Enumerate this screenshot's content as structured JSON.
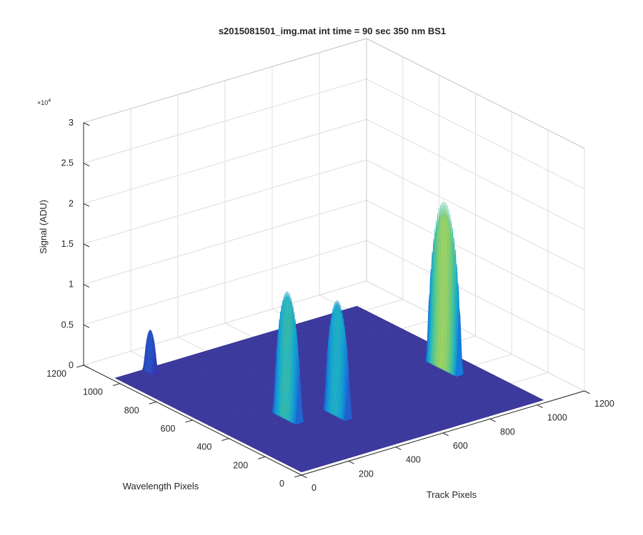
{
  "chart_data": {
    "type": "surface",
    "title": "s2015081501_img.mat int time = 90 sec  350 nm BS1",
    "xlabel": "Track Pixels",
    "ylabel": "Wavelength Pixels",
    "zlabel": "Signal (ADU)",
    "z_exponent": "×10",
    "z_exponent_power": "4",
    "xlim": [
      0,
      1200
    ],
    "ylim": [
      0,
      1200
    ],
    "zlim": [
      0,
      30000
    ],
    "x_ticks": [
      "0",
      "200",
      "400",
      "600",
      "800",
      "1000",
      "1200"
    ],
    "y_ticks": [
      "0",
      "200",
      "400",
      "600",
      "800",
      "1000",
      "1200"
    ],
    "z_ticks": [
      "0",
      "0.5",
      "1",
      "1.5",
      "2",
      "2.5",
      "3"
    ],
    "grid": true,
    "colormap": "parula",
    "baseline_signal": 400,
    "surface_extent": {
      "x": [
        0,
        1024
      ],
      "y": [
        0,
        1024
      ]
    },
    "peaks": [
      {
        "x": 130,
        "y": 1000,
        "peak_signal": 5500,
        "width_x": 12,
        "half_length_y": 30
      },
      {
        "x": 250,
        "y": 400,
        "peak_signal": 16000,
        "width_x": 16,
        "half_length_y": 70
      },
      {
        "x": 400,
        "y": 320,
        "peak_signal": 14500,
        "width_x": 15,
        "half_length_y": 65
      },
      {
        "x": 930,
        "y": 420,
        "peak_signal": 21000,
        "width_x": 15,
        "half_length_y": 90
      }
    ]
  }
}
